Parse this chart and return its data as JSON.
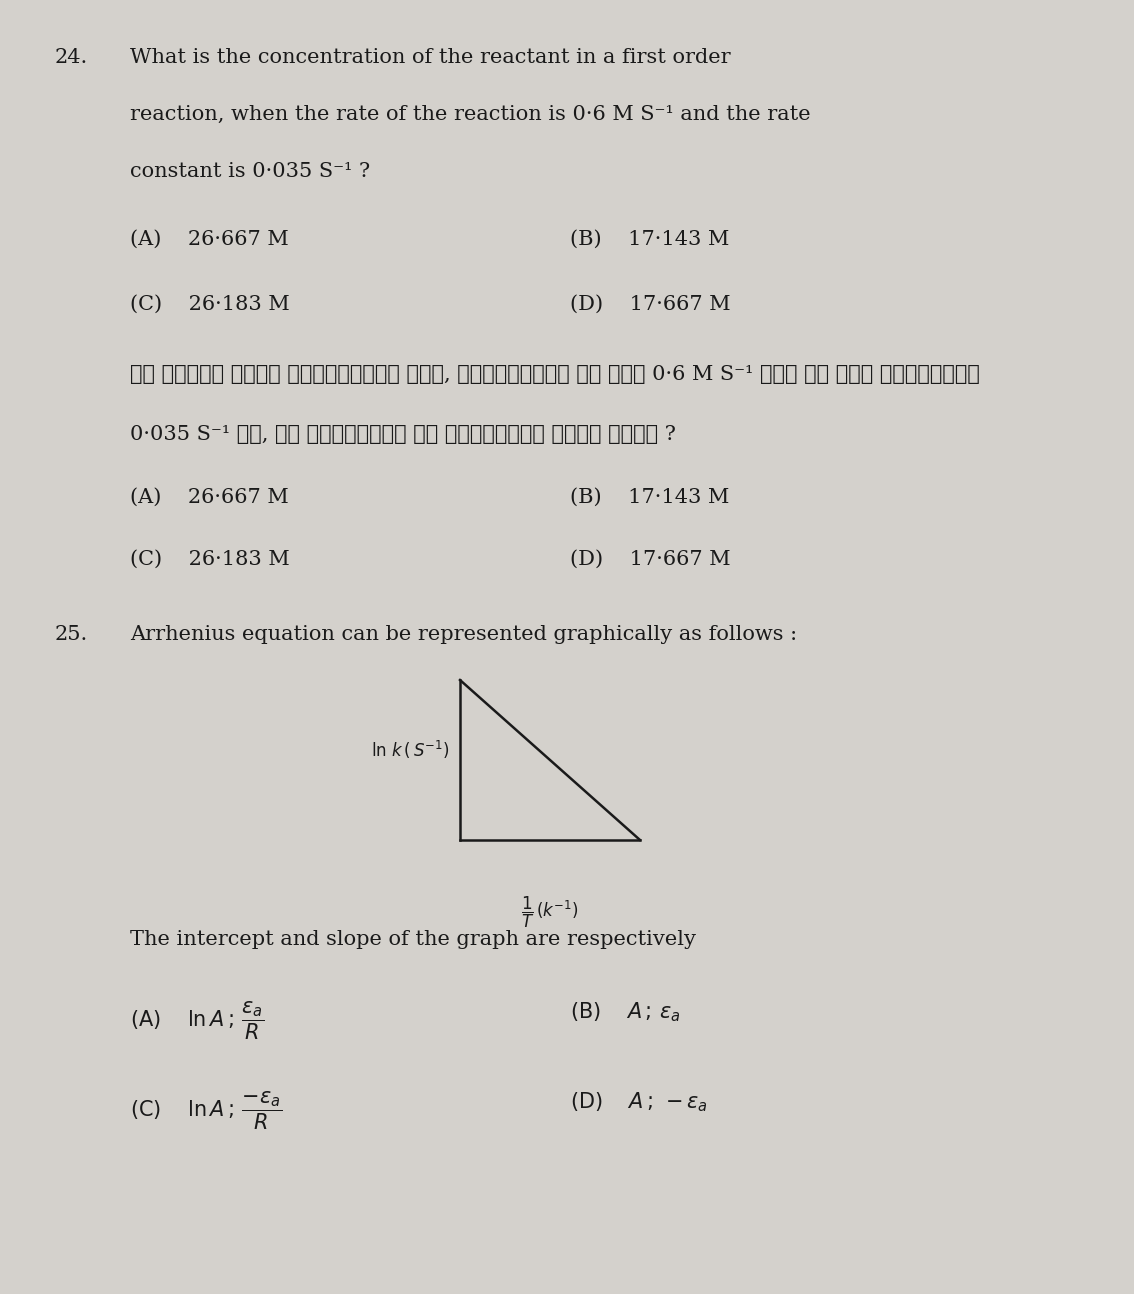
{
  "bg_color": "#d4d1cc",
  "text_color": "#1a1a1a",
  "fig_width": 11.34,
  "fig_height": 12.94,
  "q24_number": "24.",
  "q24_line1": "What is the concentration of the reactant in a first order",
  "q24_line2": "reaction, when the rate of the reaction is 0·6 M S⁻¹ and the rate",
  "q24_line3": "constant is 0·035 S⁻¹ ?",
  "q24_A": "(A)    26·667 M",
  "q24_B": "(B)    17·143 M",
  "q24_C": "(C)    26·183 M",
  "q24_D": "(D)    17·667 M",
  "hindi_line1": "एक प्रथम कोटि अभिक्रिया में, अभिक्रिया का वेग 0·6 M S⁻¹ है। जब वेग स्थिरांक",
  "hindi_line2": "0·035 S⁻¹ है, तो अभिकर्मक की सांद्रता क्या होगी ?",
  "q24h_A": "(A)    26·667 M",
  "q24h_B": "(B)    17·143 M",
  "q24h_C": "(C)    26·183 M",
  "q24h_D": "(D)    17·667 M",
  "q25_number": "25.",
  "q25_line1": "Arrhenius equation can be represented graphically as follows :",
  "q25_sub": "The intercept and slope of the graph are respectively"
}
